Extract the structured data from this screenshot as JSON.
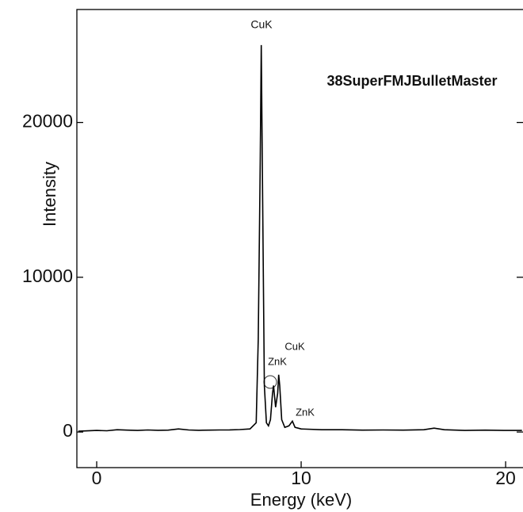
{
  "chart_data": {
    "type": "line",
    "x_label": "Energy (keV)",
    "y_label": "Intensity",
    "annotations": [
      "CuK",
      "38SuperFMJBulletMaster",
      "CuK",
      "ZnK",
      "ZnK"
    ],
    "x": [
      -0.9,
      0,
      0.5,
      1,
      1.5,
      2,
      2.5,
      3,
      3.5,
      4,
      4.5,
      5,
      5.5,
      6,
      6.5,
      7,
      7.5,
      7.8,
      7.9,
      8.0,
      8.05,
      8.1,
      8.2,
      8.3,
      8.4,
      8.5,
      8.6,
      8.65,
      8.75,
      8.85,
      8.9,
      8.95,
      9.05,
      9.2,
      9.4,
      9.57,
      9.7,
      10,
      11,
      12,
      13,
      14,
      15,
      16,
      16.5,
      17,
      18,
      19,
      20,
      20.8
    ],
    "series": [
      {
        "color": "#000000",
        "values": [
          50,
          100,
          80,
          150,
          120,
          100,
          130,
          110,
          120,
          200,
          130,
          110,
          120,
          130,
          140,
          160,
          200,
          600,
          6000,
          17500,
          25000,
          17500,
          3000,
          600,
          400,
          800,
          2500,
          3000,
          1600,
          2500,
          3700,
          3000,
          800,
          300,
          400,
          700,
          300,
          200,
          150,
          150,
          120,
          130,
          120,
          150,
          250,
          150,
          100,
          120,
          100,
          100
        ]
      }
    ],
    "xlim": [
      -0.97,
      20.85
    ],
    "ylim": [
      -2300,
      27300
    ],
    "xticks": [
      0,
      10,
      20
    ],
    "yticks": [
      0,
      10000,
      20000
    ]
  }
}
